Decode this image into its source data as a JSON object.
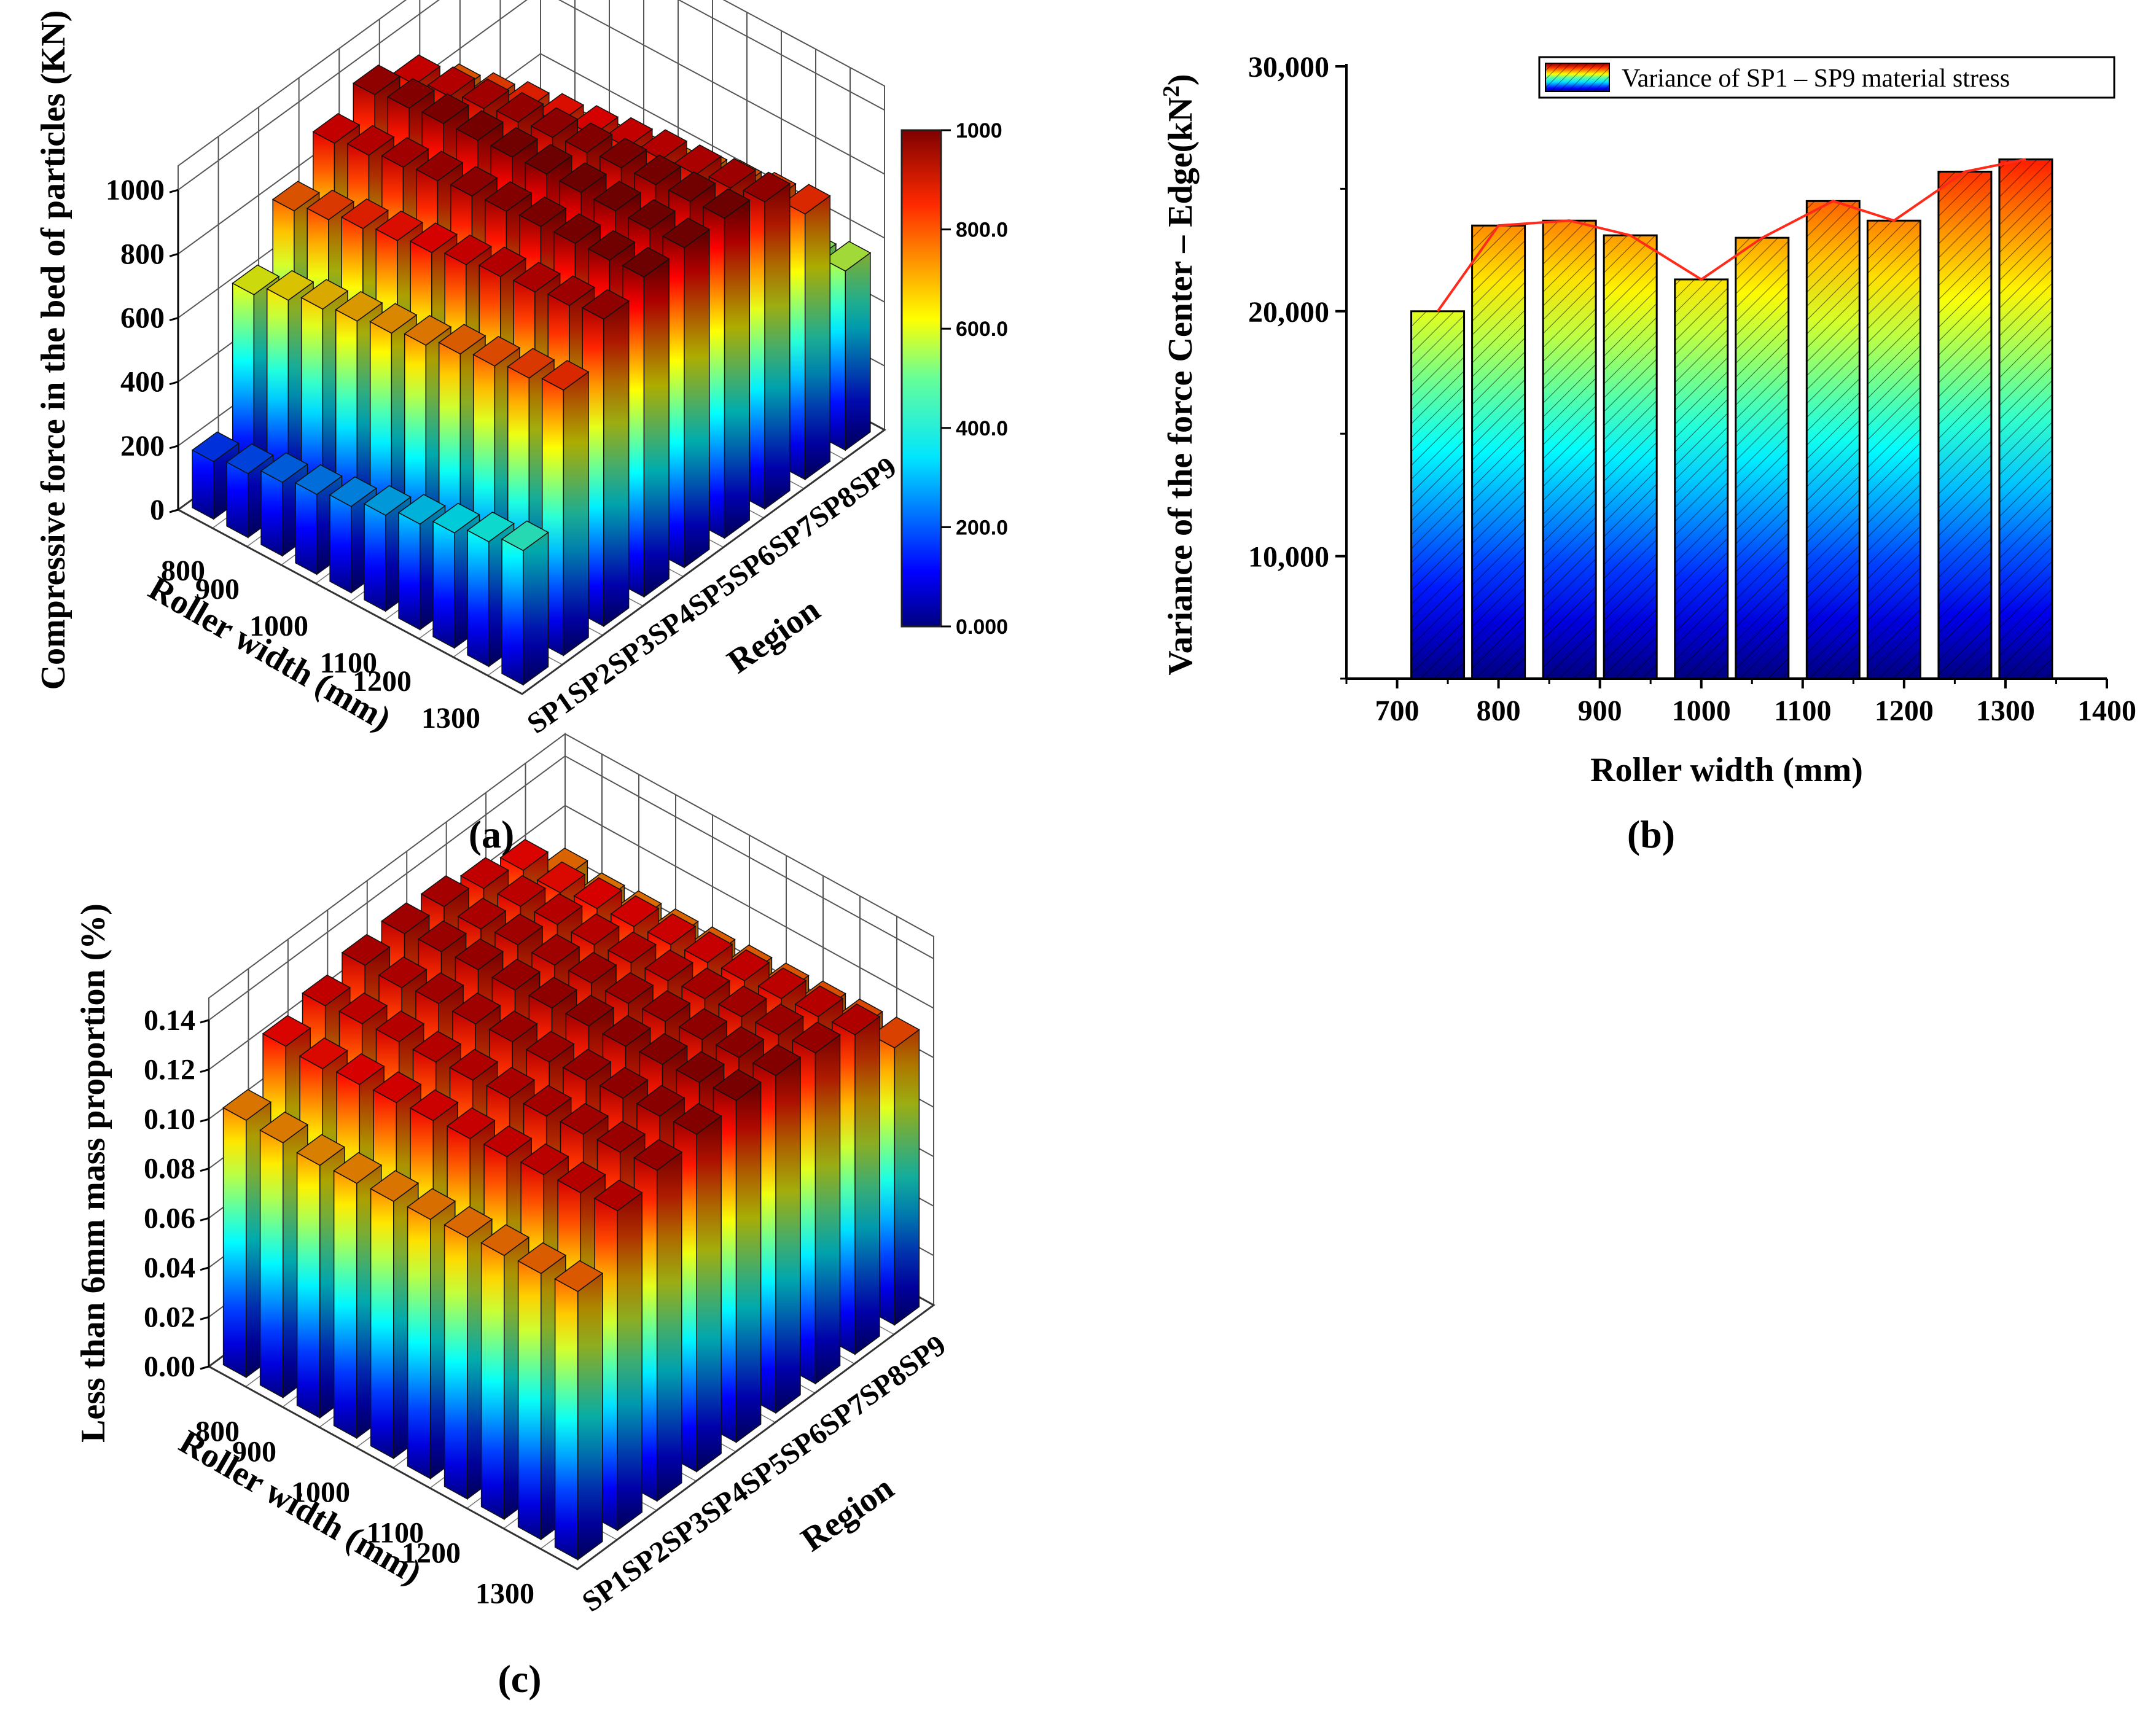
{
  "panels": {
    "a": "(a)",
    "b": "(b)",
    "c": "(c)"
  },
  "chart_data": [
    {
      "id": "a",
      "type": "bar3d",
      "title": "",
      "zlabel": "Compressive force in the bed of particles (KN)",
      "xlabel": "Roller width (mm)",
      "ylabel": "Region",
      "zticks": [
        "0",
        "200",
        "400",
        "600",
        "800",
        "1000"
      ],
      "zlim": [
        0,
        1000
      ],
      "categories_width": [
        "800",
        "900",
        "1000",
        "1100",
        "1200",
        "1300"
      ],
      "width_values": [
        750,
        800,
        900,
        950,
        1000,
        1050,
        1100,
        1200,
        1250,
        1300
      ],
      "regions": [
        "SP1",
        "SP2",
        "SP3",
        "SP4",
        "SP5",
        "SP6",
        "SP7",
        "SP8",
        "SP9"
      ],
      "colorbar": {
        "ticks": [
          "0.000",
          "200.0",
          "400.0",
          "600.0",
          "800.0",
          "1000"
        ],
        "range": [
          0,
          1000
        ]
      },
      "values": [
        [
          180,
          610,
          780,
          900,
          960,
          900,
          780,
          610,
          330
        ],
        [
          200,
          650,
          810,
          920,
          975,
          920,
          810,
          650,
          350
        ],
        [
          230,
          680,
          840,
          940,
          985,
          940,
          840,
          680,
          380
        ],
        [
          250,
          700,
          860,
          955,
          990,
          955,
          860,
          700,
          400
        ],
        [
          270,
          720,
          880,
          965,
          995,
          965,
          880,
          720,
          420
        ],
        [
          300,
          740,
          900,
          975,
          1000,
          975,
          900,
          740,
          440
        ],
        [
          330,
          770,
          920,
          985,
          1000,
          985,
          920,
          770,
          470
        ],
        [
          360,
          790,
          930,
          990,
          1000,
          990,
          930,
          790,
          500
        ],
        [
          390,
          810,
          945,
          995,
          1000,
          995,
          945,
          810,
          530
        ],
        [
          420,
          830,
          960,
          1000,
          1000,
          1000,
          960,
          830,
          560
        ]
      ]
    },
    {
      "id": "b",
      "type": "bar",
      "title": "",
      "xlabel": "Roller width (mm)",
      "ylabel_main": "Variance of the force Center – Edge(kN",
      "ylabel_sup": "2",
      "ylabel_end": ")",
      "legend": "Variance of SP1 – SP9 material stress",
      "xticks": [
        "700",
        "800",
        "900",
        "1000",
        "1100",
        "1200",
        "1300",
        "1400"
      ],
      "yticks": [
        "10,000",
        "20,000",
        "30,000"
      ],
      "xlim": [
        650,
        1400
      ],
      "ylim": [
        5000,
        30000
      ],
      "x": [
        740,
        800,
        870,
        930,
        1000,
        1060,
        1130,
        1190,
        1260,
        1320
      ],
      "values": [
        20000,
        23500,
        23700,
        23100,
        21300,
        23000,
        24500,
        23700,
        25700,
        26200
      ],
      "line_color": "#ff2a1a"
    },
    {
      "id": "c",
      "type": "bar3d",
      "title": "",
      "zlabel": "Less than 6mm mass proportion (%)",
      "xlabel": "Roller width (mm)",
      "ylabel": "Region",
      "zticks": [
        "0.00",
        "0.02",
        "0.04",
        "0.06",
        "0.08",
        "0.10",
        "0.12",
        "0.14"
      ],
      "zlim": [
        0,
        0.155
      ],
      "categories_width": [
        "800",
        "900",
        "1000",
        "1100",
        "1200",
        "1300"
      ],
      "width_values": [
        750,
        800,
        900,
        950,
        1000,
        1050,
        1100,
        1200,
        1250,
        1300
      ],
      "regions": [
        "SP1",
        "SP2",
        "SP3",
        "SP4",
        "SP5",
        "SP6",
        "SP7",
        "SP8",
        "SP9"
      ],
      "values": [
        [
          0.115,
          0.135,
          0.14,
          0.145,
          0.146,
          0.145,
          0.14,
          0.135,
          0.118
        ],
        [
          0.114,
          0.134,
          0.141,
          0.144,
          0.147,
          0.144,
          0.141,
          0.134,
          0.116
        ],
        [
          0.113,
          0.136,
          0.142,
          0.146,
          0.148,
          0.146,
          0.142,
          0.136,
          0.117
        ],
        [
          0.114,
          0.137,
          0.142,
          0.146,
          0.148,
          0.146,
          0.142,
          0.137,
          0.118
        ],
        [
          0.115,
          0.138,
          0.143,
          0.147,
          0.149,
          0.147,
          0.143,
          0.138,
          0.119
        ],
        [
          0.116,
          0.139,
          0.144,
          0.147,
          0.15,
          0.147,
          0.144,
          0.139,
          0.12
        ],
        [
          0.117,
          0.14,
          0.145,
          0.148,
          0.15,
          0.148,
          0.145,
          0.14,
          0.121
        ],
        [
          0.118,
          0.141,
          0.146,
          0.149,
          0.151,
          0.149,
          0.146,
          0.141,
          0.122
        ],
        [
          0.119,
          0.142,
          0.147,
          0.15,
          0.152,
          0.15,
          0.147,
          0.142,
          0.123
        ],
        [
          0.12,
          0.143,
          0.148,
          0.151,
          0.153,
          0.151,
          0.148,
          0.143,
          0.124
        ]
      ]
    }
  ]
}
